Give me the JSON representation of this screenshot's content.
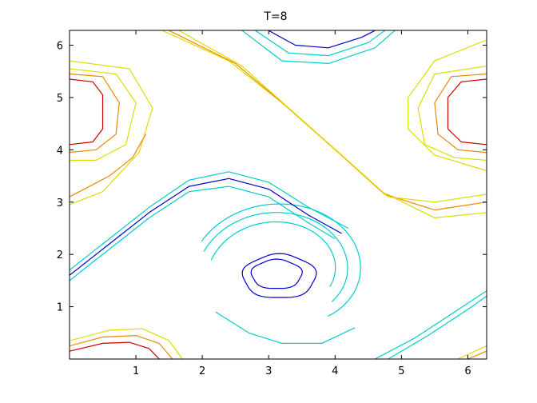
{
  "chart_data": {
    "type": "contour",
    "title": "T=8",
    "xlabel": "",
    "ylabel": "",
    "xlim": [
      0,
      6.2832
    ],
    "ylim": [
      0,
      6.2832
    ],
    "xticks": [
      1,
      2,
      3,
      4,
      5,
      6
    ],
    "yticks": [
      1,
      2,
      3,
      4,
      5,
      6
    ],
    "grid": false,
    "colors": {
      "low": "#0000cc",
      "low_mid": "#00cccc",
      "mid": "#33dd99",
      "high_mid": "#dddd00",
      "high": "#ee8800",
      "peak": "#cc0000"
    },
    "vortices": [
      {
        "name": "negative",
        "center": [
          3.14,
          1.57
        ],
        "levels": [
          "low",
          "low_mid",
          "low_mid",
          "mid"
        ]
      },
      {
        "name": "negative-top",
        "center": [
          4.0,
          6.28
        ],
        "levels": [
          "low",
          "low_mid",
          "low_mid"
        ]
      },
      {
        "name": "positive-left",
        "center": [
          0.3,
          4.71
        ],
        "levels": [
          "peak",
          "high",
          "high_mid",
          "high_mid"
        ]
      },
      {
        "name": "positive-right",
        "center": [
          6.0,
          4.71
        ],
        "levels": [
          "peak",
          "high",
          "high_mid",
          "high_mid"
        ]
      },
      {
        "name": "positive-bottom",
        "center": [
          1.0,
          0.0
        ],
        "levels": [
          "peak",
          "high",
          "high_mid"
        ]
      }
    ]
  }
}
